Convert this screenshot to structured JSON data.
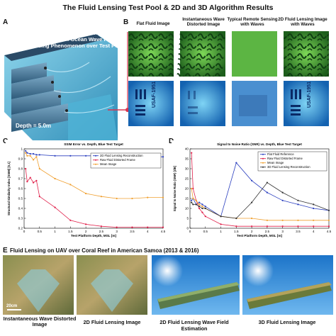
{
  "title": "The Fluid Lensing Test Pool & 2D and 3D Algorithm Results",
  "panel_labels": [
    "A",
    "B",
    "C",
    "D",
    "E"
  ],
  "panel_a": {
    "caption": "Full Physics Supercomputer Simulation of Ocean Wave Fluid Lensing Phenomenon over Test Pool",
    "depth_label": "Depth = 5.0m"
  },
  "panel_b": {
    "columns": [
      "Flat Fluid Image",
      "Instantaneous Wave Distorted Image",
      "Typical Remote Sensing with Waves",
      "2D Fluid Lensing Image with Waves"
    ],
    "usaf_label": "USAF-1951"
  },
  "chart_data": [
    {
      "type": "line",
      "title": "SSIM Error vs. Depth, Blue Test Target",
      "xlabel": "Test Platform Depth, MSL [m]",
      "ylabel": "Structural Similarity Index [SSIM] [0,1]",
      "xlim": [
        0,
        4.5
      ],
      "ylim": [
        0.2,
        1.0
      ],
      "xticks": [
        "0",
        "0.5",
        "1",
        "1.5",
        "2",
        "2.5",
        "3",
        "3.5",
        "4",
        "4.5"
      ],
      "yticks": [
        "0.2",
        "0.3",
        "0.4",
        "0.5",
        "0.6",
        "0.7",
        "0.8",
        "0.9",
        "1"
      ],
      "legend_position": "top-right",
      "x": [
        0.05,
        0.1,
        0.2,
        0.3,
        0.4,
        0.5,
        1,
        1.5,
        2,
        2.5,
        3,
        3.5,
        4,
        4.5
      ],
      "series": [
        {
          "name": "2D Fluid Lensing Reconstruction",
          "color": "#2b3fbf",
          "values": [
            0.98,
            0.96,
            0.95,
            0.95,
            0.94,
            0.94,
            0.93,
            0.93,
            0.93,
            0.93,
            0.93,
            0.92,
            0.92,
            0.92
          ]
        },
        {
          "name": "Raw Fluid Distorted Frame",
          "color": "#e0204a",
          "values": [
            0.8,
            0.67,
            0.71,
            0.66,
            0.68,
            0.52,
            0.41,
            0.28,
            0.24,
            0.22,
            0.21,
            0.21,
            0.21,
            0.21
          ]
        },
        {
          "name": "Mean Image",
          "color": "#f0a030",
          "values": [
            0.96,
            0.93,
            0.93,
            0.89,
            0.92,
            0.8,
            0.7,
            0.64,
            0.55,
            0.52,
            0.5,
            0.5,
            0.51,
            0.51
          ]
        }
      ]
    },
    {
      "type": "line",
      "title": "Signal to Noise Ratio (SNR) vs. Depth, Blue Test Target",
      "xlabel": "Test Platform Depth, MSL [m]",
      "ylabel": "Signal to Noise Ratio (SNR) [dB]",
      "xlim": [
        0,
        4.5
      ],
      "ylim": [
        0,
        40
      ],
      "xticks": [
        "0",
        "0.5",
        "1",
        "1.5",
        "2",
        "2.5",
        "3",
        "3.5",
        "4",
        "4.5"
      ],
      "yticks": [
        "0",
        "5",
        "10",
        "15",
        "20",
        "25",
        "30",
        "35",
        "40"
      ],
      "legend_position": "top-right",
      "x": [
        0.05,
        0.1,
        0.2,
        0.3,
        0.4,
        0.5,
        1,
        1.5,
        2,
        2.5,
        3,
        3.5,
        4,
        4.5
      ],
      "series": [
        {
          "name": "Flat Fluid Reference",
          "color": "#2b3fbf",
          "values": [
            14,
            15,
            12,
            13,
            12,
            11,
            6,
            33,
            24,
            18,
            14,
            12,
            10,
            9
          ]
        },
        {
          "name": "Raw Fluid Distorted Frame",
          "color": "#e0204a",
          "values": [
            38,
            20,
            14,
            10,
            8,
            6,
            2,
            1,
            1,
            1,
            1,
            1,
            1,
            1
          ]
        },
        {
          "name": "Mean Image",
          "color": "#f0a030",
          "values": [
            20,
            15,
            14,
            12,
            11,
            10,
            6,
            5,
            5,
            4,
            4,
            4,
            4,
            4
          ]
        },
        {
          "name": "3D Fluid Lensing Reconstruction",
          "color": "#333333",
          "values": [
            13,
            12,
            12,
            11,
            10,
            10,
            6,
            5,
            13,
            23,
            18,
            14,
            12,
            9
          ]
        }
      ]
    }
  ],
  "panel_e": {
    "heading": "Fluid Lensing on UAV over Coral Reef in American Samoa (2013 & 2016)",
    "scale_label": "20cm",
    "captions": [
      "Instantaneous Wave Distorted Image",
      "2D Fluid Lensing Image",
      "2D Fluid Lensing Wave Field Estimation",
      "3D Fluid Lensing Image"
    ]
  },
  "colors": {
    "pool_water": "#5ab6d8",
    "tile_blue": "#1e7fc9",
    "tile_green": "#3fa83a",
    "accent_red": "#d9334f"
  }
}
